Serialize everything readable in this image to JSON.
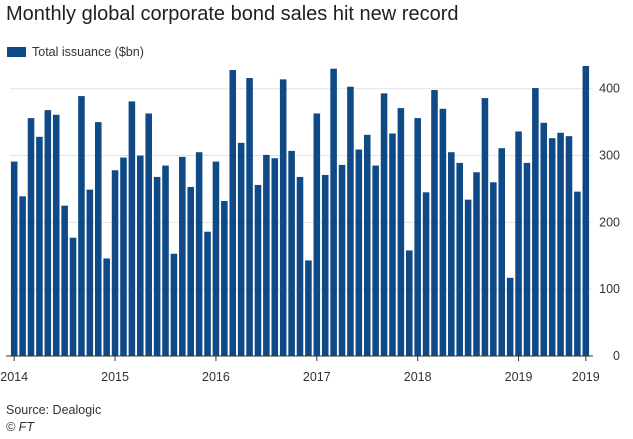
{
  "chart_data": {
    "type": "bar",
    "title": "Monthly global corporate bond sales hit new record",
    "xlabel": "",
    "ylabel": "",
    "legend": [
      {
        "name": "Total issuance ($bn)",
        "color": "#0f4a86"
      }
    ],
    "series": [
      {
        "name": "Total issuance ($bn)",
        "color": "#0f4a86",
        "values": [
          291,
          239,
          356,
          328,
          368,
          361,
          225,
          177,
          389,
          249,
          350,
          146,
          278,
          297,
          381,
          300,
          363,
          268,
          285,
          153,
          298,
          253,
          305,
          186,
          291,
          232,
          428,
          319,
          416,
          256,
          301,
          296,
          414,
          307,
          268,
          143,
          363,
          271,
          430,
          286,
          403,
          309,
          331,
          285,
          393,
          333,
          371,
          158,
          356,
          245,
          398,
          370,
          305,
          289,
          234,
          275,
          386,
          260,
          311,
          117,
          336,
          289,
          401,
          349,
          326,
          334,
          329,
          246,
          434
        ]
      }
    ],
    "x_tick_labels": [
      "2014",
      "2015",
      "2016",
      "2017",
      "2018",
      "2019",
      "2019"
    ],
    "x_tick_month_index": [
      0,
      12,
      24,
      36,
      48,
      60,
      68
    ],
    "y_ticks": [
      0,
      100,
      200,
      300,
      400
    ],
    "ylim": [
      0,
      440
    ],
    "grid": true,
    "y_axis_position": "right"
  },
  "source": "Source: Dealogic",
  "credit": "© FT"
}
